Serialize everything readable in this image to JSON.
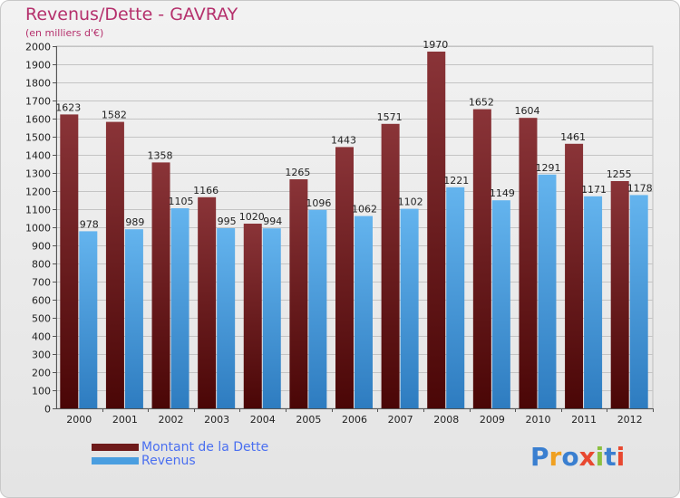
{
  "title": "Revenus/Dette - GAVRAY",
  "subtitle": "(en milliers d'€)",
  "colors": {
    "title": "#b5306c",
    "dette": "#7a2e32",
    "revenus": "#5aa6e0",
    "legend_text": "#4a6ff0"
  },
  "legend": [
    {
      "label": "Montant de la Dette",
      "color": "#6e1a1a"
    },
    {
      "label": "Revenus",
      "color": "#4a9ee0"
    }
  ],
  "logo": {
    "text": "Proxiti"
  },
  "chart_data": {
    "type": "bar",
    "categories": [
      "2000",
      "2001",
      "2002",
      "2003",
      "2004",
      "2005",
      "2006",
      "2007",
      "2008",
      "2009",
      "2010",
      "2011",
      "2012"
    ],
    "series": [
      {
        "name": "Montant de la Dette",
        "values": [
          1623,
          1582,
          1358,
          1166,
          1020,
          1265,
          1443,
          1571,
          1970,
          1652,
          1604,
          1461,
          1255
        ]
      },
      {
        "name": "Revenus",
        "values": [
          978,
          989,
          1105,
          995,
          994,
          1096,
          1062,
          1102,
          1221,
          1149,
          1291,
          1171,
          1178
        ]
      }
    ],
    "ylim": [
      0,
      2000
    ],
    "yticks": [
      0,
      100,
      200,
      300,
      400,
      500,
      600,
      700,
      800,
      900,
      1000,
      1100,
      1200,
      1300,
      1400,
      1500,
      1600,
      1700,
      1800,
      1900,
      2000
    ],
    "grid": true,
    "legend_position": "bottom-left"
  }
}
